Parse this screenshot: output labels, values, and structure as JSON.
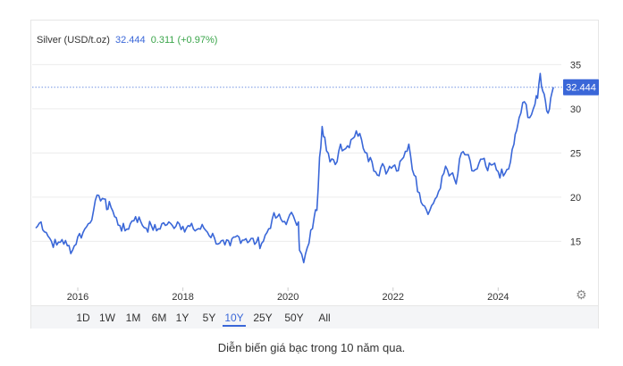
{
  "legend": {
    "instrument": "Silver (USD/t.oz)",
    "last_value": "32.444",
    "change": "0.311 (+0.97%)"
  },
  "price_tag": "32.444",
  "range_buttons": [
    "1D",
    "1W",
    "1M",
    "6M",
    "1Y",
    "5Y",
    "10Y",
    "25Y",
    "50Y",
    "All"
  ],
  "active_range": "10Y",
  "caption": "Diễn biến giá bạc trong 10 năm qua.",
  "icons": {
    "settings": "gear-icon"
  },
  "colors": {
    "line": "#3a67d8",
    "grid": "#ececec",
    "tag_bg": "#3a67d8",
    "change": "#3aa54a"
  },
  "chart_data": {
    "type": "line",
    "title": "",
    "xlabel": "",
    "ylabel": "",
    "xlim": [
      2015.2,
      2025.1
    ],
    "ylim": [
      10,
      36
    ],
    "x_ticks": [
      2016,
      2018,
      2020,
      2022,
      2024
    ],
    "y_ticks": [
      15,
      20,
      25,
      30,
      35
    ],
    "grid": true,
    "last_value_line": 32.444,
    "series": [
      {
        "name": "Silver (USD/t.oz)",
        "x": [
          2015.2,
          2015.3,
          2015.4,
          2015.5,
          2015.6,
          2015.7,
          2015.8,
          2015.9,
          2016.0,
          2016.1,
          2016.2,
          2016.3,
          2016.4,
          2016.5,
          2016.55,
          2016.6,
          2016.7,
          2016.8,
          2016.9,
          2017.0,
          2017.1,
          2017.2,
          2017.3,
          2017.4,
          2017.5,
          2017.6,
          2017.7,
          2017.8,
          2017.9,
          2018.0,
          2018.2,
          2018.4,
          2018.6,
          2018.7,
          2018.8,
          2018.9,
          2019.0,
          2019.2,
          2019.4,
          2019.5,
          2019.6,
          2019.7,
          2019.8,
          2019.9,
          2020.0,
          2020.1,
          2020.2,
          2020.22,
          2020.3,
          2020.4,
          2020.5,
          2020.55,
          2020.6,
          2020.65,
          2020.7,
          2020.8,
          2020.9,
          2021.0,
          2021.1,
          2021.2,
          2021.3,
          2021.4,
          2021.5,
          2021.6,
          2021.7,
          2021.8,
          2021.9,
          2022.0,
          2022.1,
          2022.2,
          2022.3,
          2022.4,
          2022.5,
          2022.6,
          2022.7,
          2022.8,
          2022.9,
          2023.0,
          2023.1,
          2023.2,
          2023.3,
          2023.4,
          2023.5,
          2023.6,
          2023.7,
          2023.8,
          2023.9,
          2024.0,
          2024.1,
          2024.2,
          2024.3,
          2024.35,
          2024.4,
          2024.5,
          2024.6,
          2024.7,
          2024.75,
          2024.8,
          2024.85,
          2024.9,
          2024.95,
          2025.0,
          2025.05
        ],
        "y": [
          16.5,
          17.2,
          16.0,
          15.0,
          14.6,
          15.2,
          14.5,
          14.0,
          15.5,
          16.0,
          17.0,
          18.5,
          20.2,
          19.8,
          18.6,
          19.5,
          17.8,
          16.8,
          16.2,
          17.0,
          17.8,
          17.2,
          16.5,
          16.8,
          16.2,
          17.0,
          16.9,
          16.8,
          17.2,
          16.7,
          16.4,
          16.5,
          15.4,
          14.8,
          14.6,
          14.5,
          15.5,
          15.3,
          14.9,
          14.8,
          16.0,
          17.5,
          17.8,
          17.2,
          17.5,
          17.9,
          17.2,
          14.0,
          12.6,
          14.8,
          17.8,
          18.5,
          24.5,
          28.0,
          26.8,
          24.0,
          23.7,
          26.0,
          25.5,
          26.5,
          27.5,
          26.5,
          25.0,
          24.0,
          22.5,
          23.8,
          23.0,
          23.5,
          23.0,
          24.5,
          26.0,
          22.5,
          20.5,
          19.0,
          18.5,
          19.8,
          21.0,
          23.5,
          22.6,
          21.5,
          25.0,
          24.8,
          23.0,
          23.2,
          24.3,
          23.0,
          23.7,
          22.9,
          22.4,
          23.2,
          26.0,
          27.5,
          29.0,
          30.8,
          29.0,
          30.5,
          31.2,
          34.0,
          32.0,
          30.9,
          29.5,
          31.2,
          32.444
        ]
      }
    ]
  }
}
